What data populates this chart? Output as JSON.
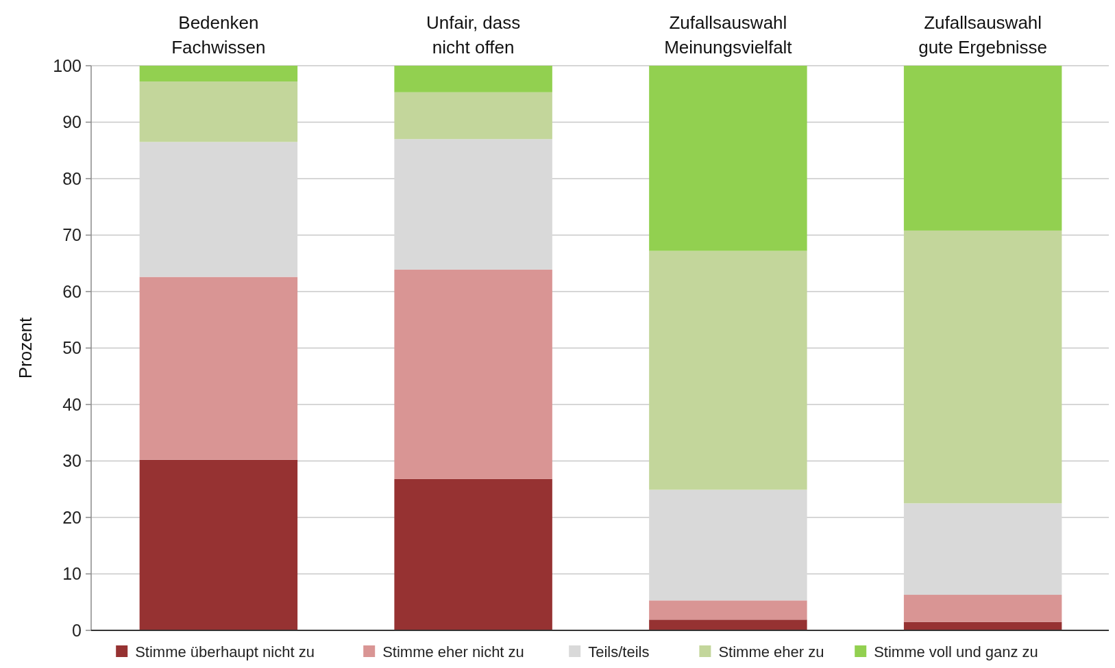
{
  "chart_data": {
    "type": "bar",
    "stacked": true,
    "ylabel": "Prozent",
    "categories": [
      "Bedenken\nFachwissen",
      "Unfair, dass\nnicht offen",
      "Zufallsauswahl\nMeinungsvielfalt",
      "Zufallsauswahl\ngute Ergebnisse"
    ],
    "series": [
      {
        "name": "Stimme überhaupt nicht zu",
        "color": "#963232",
        "values": [
          30.2,
          26.8,
          1.9,
          1.5
        ]
      },
      {
        "name": "Stimme eher nicht zu",
        "color": "#d99594",
        "values": [
          32.4,
          37.1,
          3.4,
          4.8
        ]
      },
      {
        "name": "Teils/teils",
        "color": "#d9d9d9",
        "values": [
          23.9,
          23.1,
          19.6,
          16.2
        ]
      },
      {
        "name": "Stimme eher zu",
        "color": "#c3d69b",
        "values": [
          10.7,
          8.3,
          42.3,
          48.3
        ]
      },
      {
        "name": "Stimme voll und ganz zu",
        "color": "#92d050",
        "values": [
          2.8,
          4.7,
          32.8,
          29.2
        ]
      }
    ],
    "ylim": [
      0,
      100
    ],
    "yticks": [
      0,
      10,
      20,
      30,
      40,
      50,
      60,
      70,
      80,
      90,
      100
    ],
    "grid": "y",
    "legend": "bottom"
  }
}
